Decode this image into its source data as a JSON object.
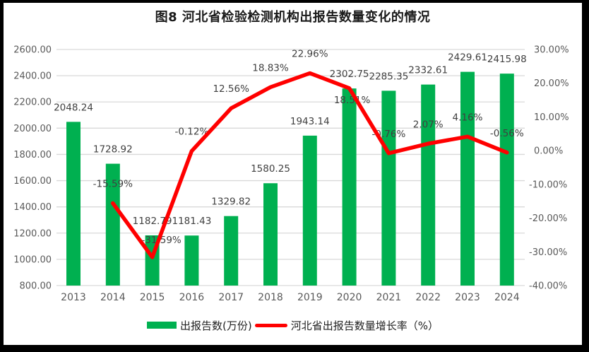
{
  "title": "图8 河北省检验检测机构出报告数量变化的情况",
  "legend": {
    "bars_label": "出报告数(万份)",
    "line_label": "河北省出报告数量增长率（%）"
  },
  "colors": {
    "bar": "#00B050",
    "line": "#FF0000",
    "grid": "#D9D9D9",
    "axis_text": "#595959",
    "data_label": "#404040"
  },
  "chart_data": {
    "type": "bar+line",
    "title": "图8 河北省检验检测机构出报告数量变化的情况",
    "categories": [
      "2013",
      "2014",
      "2015",
      "2016",
      "2017",
      "2018",
      "2019",
      "2020",
      "2021",
      "2022",
      "2023",
      "2024"
    ],
    "series": [
      {
        "name": "出报告数(万份)",
        "type": "bar",
        "axis": "left",
        "color": "#00B050",
        "values": [
          2048.24,
          1728.92,
          1182.79,
          1181.43,
          1329.82,
          1580.25,
          1943.14,
          2302.75,
          2285.35,
          2332.61,
          2429.61,
          2415.98
        ]
      },
      {
        "name": "河北省出报告数量增长率（%）",
        "type": "line",
        "axis": "right",
        "color": "#FF0000",
        "values": [
          null,
          -15.59,
          -31.59,
          -0.12,
          12.56,
          18.83,
          22.96,
          18.51,
          -0.76,
          2.07,
          4.16,
          -0.56
        ]
      }
    ],
    "left_axis": {
      "min": 800,
      "max": 2600,
      "step": 200,
      "tick_format": "0.00"
    },
    "right_axis": {
      "min": -40,
      "max": 30,
      "step": 10,
      "tick_format": "0.00%"
    },
    "grid": true,
    "data_labels": true,
    "legend_position": "bottom"
  }
}
